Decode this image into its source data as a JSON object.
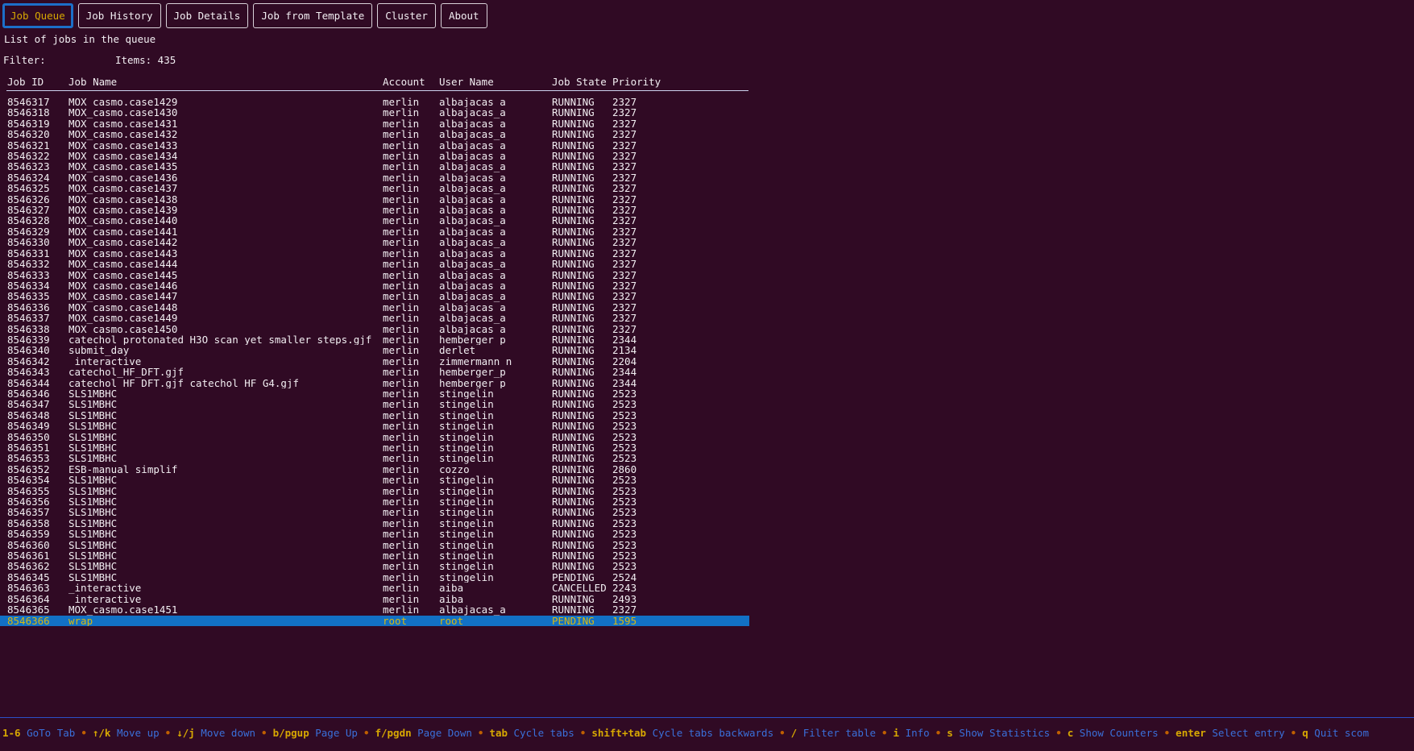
{
  "app": {
    "name": "scom",
    "subtitle": "List of jobs in the queue"
  },
  "tabs": [
    {
      "label": "Job Queue",
      "active": true
    },
    {
      "label": "Job History",
      "active": false
    },
    {
      "label": "Job Details",
      "active": false
    },
    {
      "label": "Job from Template",
      "active": false
    },
    {
      "label": "Cluster",
      "active": false
    },
    {
      "label": "About",
      "active": false
    }
  ],
  "filter": {
    "label": "Filter:",
    "value": "",
    "items_label": "Items: 435"
  },
  "table": {
    "columns": [
      "Job ID",
      "Job Name",
      "Account",
      "User Name",
      "Job State",
      "Priority"
    ],
    "selected_index": 48,
    "rows": [
      [
        "8546317",
        "MOX_casmo.case1429",
        "merlin",
        "albajacas_a",
        "RUNNING",
        "2327"
      ],
      [
        "8546318",
        "MOX_casmo.case1430",
        "merlin",
        "albajacas_a",
        "RUNNING",
        "2327"
      ],
      [
        "8546319",
        "MOX_casmo.case1431",
        "merlin",
        "albajacas_a",
        "RUNNING",
        "2327"
      ],
      [
        "8546320",
        "MOX_casmo.case1432",
        "merlin",
        "albajacas_a",
        "RUNNING",
        "2327"
      ],
      [
        "8546321",
        "MOX_casmo.case1433",
        "merlin",
        "albajacas_a",
        "RUNNING",
        "2327"
      ],
      [
        "8546322",
        "MOX_casmo.case1434",
        "merlin",
        "albajacas_a",
        "RUNNING",
        "2327"
      ],
      [
        "8546323",
        "MOX_casmo.case1435",
        "merlin",
        "albajacas_a",
        "RUNNING",
        "2327"
      ],
      [
        "8546324",
        "MOX_casmo.case1436",
        "merlin",
        "albajacas_a",
        "RUNNING",
        "2327"
      ],
      [
        "8546325",
        "MOX_casmo.case1437",
        "merlin",
        "albajacas_a",
        "RUNNING",
        "2327"
      ],
      [
        "8546326",
        "MOX_casmo.case1438",
        "merlin",
        "albajacas_a",
        "RUNNING",
        "2327"
      ],
      [
        "8546327",
        "MOX_casmo.case1439",
        "merlin",
        "albajacas_a",
        "RUNNING",
        "2327"
      ],
      [
        "8546328",
        "MOX_casmo.case1440",
        "merlin",
        "albajacas_a",
        "RUNNING",
        "2327"
      ],
      [
        "8546329",
        "MOX_casmo.case1441",
        "merlin",
        "albajacas_a",
        "RUNNING",
        "2327"
      ],
      [
        "8546330",
        "MOX_casmo.case1442",
        "merlin",
        "albajacas_a",
        "RUNNING",
        "2327"
      ],
      [
        "8546331",
        "MOX_casmo.case1443",
        "merlin",
        "albajacas_a",
        "RUNNING",
        "2327"
      ],
      [
        "8546332",
        "MOX_casmo.case1444",
        "merlin",
        "albajacas_a",
        "RUNNING",
        "2327"
      ],
      [
        "8546333",
        "MOX_casmo.case1445",
        "merlin",
        "albajacas_a",
        "RUNNING",
        "2327"
      ],
      [
        "8546334",
        "MOX_casmo.case1446",
        "merlin",
        "albajacas_a",
        "RUNNING",
        "2327"
      ],
      [
        "8546335",
        "MOX_casmo.case1447",
        "merlin",
        "albajacas_a",
        "RUNNING",
        "2327"
      ],
      [
        "8546336",
        "MOX_casmo.case1448",
        "merlin",
        "albajacas_a",
        "RUNNING",
        "2327"
      ],
      [
        "8546337",
        "MOX_casmo.case1449",
        "merlin",
        "albajacas_a",
        "RUNNING",
        "2327"
      ],
      [
        "8546338",
        "MOX_casmo.case1450",
        "merlin",
        "albajacas_a",
        "RUNNING",
        "2327"
      ],
      [
        "8546339",
        "catechol_protonated_H3O_scan_yet_smaller_steps.gjf",
        "merlin",
        "hemberger_p",
        "RUNNING",
        "2344"
      ],
      [
        "8546340",
        "submit_day",
        "merlin",
        "derlet",
        "RUNNING",
        "2134"
      ],
      [
        "8546342",
        "_interactive",
        "merlin",
        "zimmermann_n",
        "RUNNING",
        "2204"
      ],
      [
        "8546343",
        "catechol_HF_DFT.gjf",
        "merlin",
        "hemberger_p",
        "RUNNING",
        "2344"
      ],
      [
        "8546344",
        "catechol_HF_DFT.gjf catechol_HF_G4.gjf",
        "merlin",
        "hemberger_p",
        "RUNNING",
        "2344"
      ],
      [
        "8546346",
        "SLS1MBHC",
        "merlin",
        "stingelin",
        "RUNNING",
        "2523"
      ],
      [
        "8546347",
        "SLS1MBHC",
        "merlin",
        "stingelin",
        "RUNNING",
        "2523"
      ],
      [
        "8546348",
        "SLS1MBHC",
        "merlin",
        "stingelin",
        "RUNNING",
        "2523"
      ],
      [
        "8546349",
        "SLS1MBHC",
        "merlin",
        "stingelin",
        "RUNNING",
        "2523"
      ],
      [
        "8546350",
        "SLS1MBHC",
        "merlin",
        "stingelin",
        "RUNNING",
        "2523"
      ],
      [
        "8546351",
        "SLS1MBHC",
        "merlin",
        "stingelin",
        "RUNNING",
        "2523"
      ],
      [
        "8546353",
        "SLS1MBHC",
        "merlin",
        "stingelin",
        "RUNNING",
        "2523"
      ],
      [
        "8546352",
        "ESB-manual_simplif",
        "merlin",
        "cozzo",
        "RUNNING",
        "2860"
      ],
      [
        "8546354",
        "SLS1MBHC",
        "merlin",
        "stingelin",
        "RUNNING",
        "2523"
      ],
      [
        "8546355",
        "SLS1MBHC",
        "merlin",
        "stingelin",
        "RUNNING",
        "2523"
      ],
      [
        "8546356",
        "SLS1MBHC",
        "merlin",
        "stingelin",
        "RUNNING",
        "2523"
      ],
      [
        "8546357",
        "SLS1MBHC",
        "merlin",
        "stingelin",
        "RUNNING",
        "2523"
      ],
      [
        "8546358",
        "SLS1MBHC",
        "merlin",
        "stingelin",
        "RUNNING",
        "2523"
      ],
      [
        "8546359",
        "SLS1MBHC",
        "merlin",
        "stingelin",
        "RUNNING",
        "2523"
      ],
      [
        "8546360",
        "SLS1MBHC",
        "merlin",
        "stingelin",
        "RUNNING",
        "2523"
      ],
      [
        "8546361",
        "SLS1MBHC",
        "merlin",
        "stingelin",
        "RUNNING",
        "2523"
      ],
      [
        "8546362",
        "SLS1MBHC",
        "merlin",
        "stingelin",
        "RUNNING",
        "2523"
      ],
      [
        "8546345",
        "SLS1MBHC",
        "merlin",
        "stingelin",
        "PENDING",
        "2524"
      ],
      [
        "8546363",
        "_interactive",
        "merlin",
        "aiba",
        "CANCELLED",
        "2243"
      ],
      [
        "8546364",
        "_interactive",
        "merlin",
        "aiba",
        "RUNNING",
        "2493"
      ],
      [
        "8546365",
        "MOX_casmo.case1451",
        "merlin",
        "albajacas_a",
        "RUNNING",
        "2327"
      ],
      [
        "8546366",
        "wrap",
        "root",
        "root",
        "PENDING",
        "1595"
      ]
    ]
  },
  "help": {
    "separator": "•",
    "items": [
      {
        "key": "1-6",
        "desc": "GoTo Tab"
      },
      {
        "key": "↑/k",
        "desc": "Move up"
      },
      {
        "key": "↓/j",
        "desc": "Move down"
      },
      {
        "key": "b/pgup",
        "desc": "Page Up"
      },
      {
        "key": "f/pgdn",
        "desc": "Page Down"
      },
      {
        "key": "tab",
        "desc": "Cycle tabs"
      },
      {
        "key": "shift+tab",
        "desc": "Cycle tabs backwards"
      },
      {
        "key": "/",
        "desc": "Filter table"
      },
      {
        "key": "i",
        "desc": "Info"
      },
      {
        "key": "s",
        "desc": "Show Statistics"
      },
      {
        "key": "c",
        "desc": "Show Counters"
      },
      {
        "key": "enter",
        "desc": "Select entry"
      },
      {
        "key": "q",
        "desc": "Quit scom"
      }
    ]
  },
  "colors": {
    "bg": "#300a24",
    "fg": "#f2eef2",
    "accent_yellow": "#d7a802",
    "accent_blue": "#1c6fc8",
    "accent_orange": "#bf5f00",
    "help_blue": "#3a6fd9",
    "selection_bg": "#1271c5",
    "selection_fg": "#d9b90f",
    "tab_border": "#d9d2d9",
    "rule_light": "#ccd3ef",
    "rule_blue": "#2b50c8"
  }
}
